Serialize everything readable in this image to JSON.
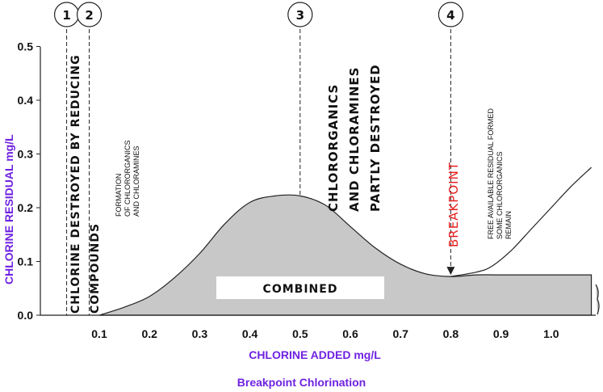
{
  "chart_data": {
    "type": "area",
    "title": "Breakpoint Chlorination",
    "xlabel": "CHLORINE ADDED  mg/L",
    "ylabel": "CHLORINE RESIDUAL  mg/L",
    "xticks": [
      "0.1",
      "0.2",
      "0.3",
      "0.4",
      "0.5",
      "0.6",
      "0.7",
      "0.8",
      "0.9",
      "1.0"
    ],
    "yticks": [
      "0.0",
      "0.1",
      "0.2",
      "0.3",
      "0.4",
      "0.5"
    ],
    "xlim": [
      0.02,
      1.09
    ],
    "ylim": [
      0.0,
      0.55
    ],
    "series": [
      {
        "name": "COMBINED",
        "x": [
          0.1,
          0.15,
          0.2,
          0.25,
          0.3,
          0.35,
          0.4,
          0.45,
          0.5,
          0.55,
          0.6,
          0.65,
          0.7,
          0.75,
          0.8,
          0.85,
          0.9,
          1.0,
          1.08
        ],
        "y": [
          0.0,
          0.015,
          0.035,
          0.07,
          0.115,
          0.17,
          0.21,
          0.222,
          0.222,
          0.205,
          0.165,
          0.125,
          0.095,
          0.077,
          0.072,
          0.075,
          0.075,
          0.075,
          0.075
        ]
      },
      {
        "name": "FREE AVAILABLE RESIDUAL",
        "x": [
          0.8,
          0.85,
          0.88,
          0.92,
          0.96,
          1.0,
          1.04,
          1.08
        ],
        "y": [
          0.072,
          0.08,
          0.09,
          0.12,
          0.16,
          0.2,
          0.24,
          0.275
        ]
      }
    ],
    "markers": [
      {
        "label": "1",
        "x": 0.035
      },
      {
        "label": "2",
        "x": 0.08
      },
      {
        "label": "3",
        "x": 0.5
      },
      {
        "label": "4",
        "x": 0.8
      }
    ]
  },
  "annotations": {
    "zone1": "CHLORINE DESTROYED BY REDUCING",
    "zone1b": "COMPOUNDS",
    "zone2": "FORMATION",
    "zone2b": "OF CHLORORGANICS",
    "zone2c": "AND CHLORAMINES",
    "zone3": "CHLORORGANICS",
    "zone3b": "AND CHLORAMINES",
    "zone3c": "PARTLY DESTROYED",
    "breakpoint": "BREAKPOINT",
    "zone4": "FREE AVAILABLE RESIDUAL FORMED",
    "zone4b": "SOME CHLORORGANICS",
    "zone4c": "REMAIN",
    "combined": "COMBINED"
  }
}
